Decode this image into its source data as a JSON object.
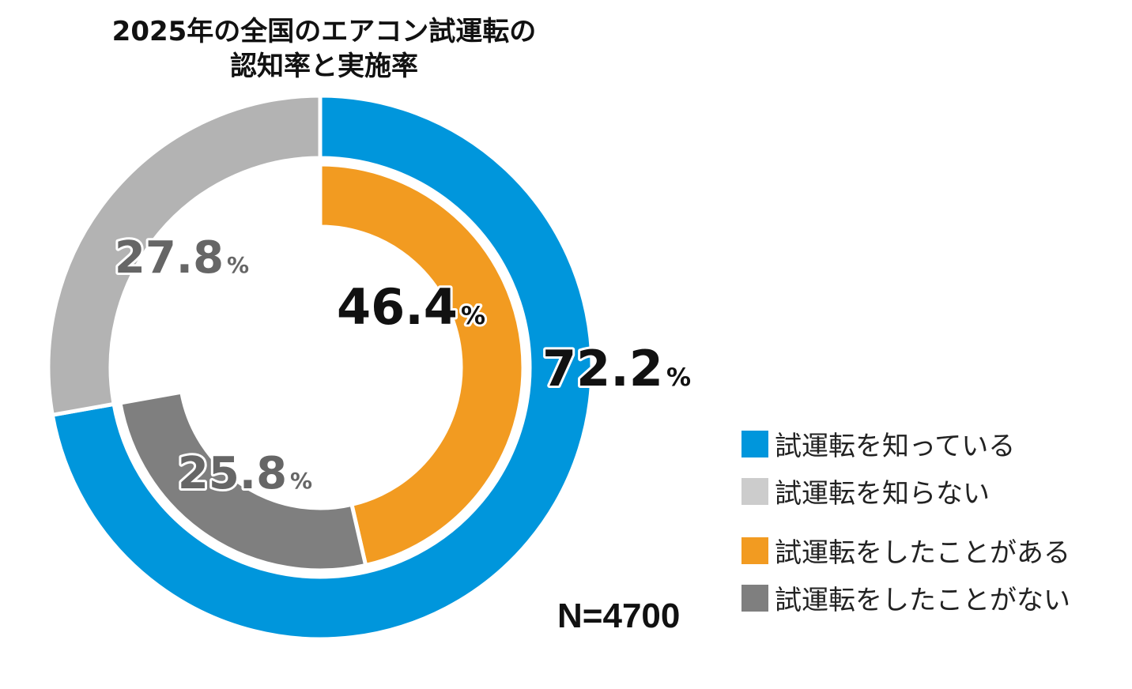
{
  "chart_data": {
    "type": "pie",
    "title_lines": [
      "2025年の全国のエアコン試運転の",
      "認知率と実施率"
    ],
    "rings": [
      {
        "name": "outer",
        "slices": [
          {
            "label": "試運転を知っている",
            "value": 72.2,
            "color": "#0096DC",
            "display": "72.2"
          },
          {
            "label": "試運転を知らない",
            "value": 27.8,
            "color": "#B3B3B3",
            "display": "27.8"
          }
        ]
      },
      {
        "name": "inner",
        "slices": [
          {
            "label": "試運転をしたことがある",
            "value": 46.4,
            "color": "#F29B21",
            "display": "46.4"
          },
          {
            "label": "試運転をしたことがない",
            "value": 25.8,
            "color": "#7F7F7F",
            "display": "25.8"
          }
        ]
      }
    ],
    "unit": "%",
    "legend": [
      {
        "label": "試運転を知っている",
        "color": "#0096DC"
      },
      {
        "label": "試運転を知らない",
        "color": "#CCCCCC"
      },
      {
        "label": "試運転をしたことがある",
        "color": "#F29B21"
      },
      {
        "label": "試運転をしたことがない",
        "color": "#7F7F7F"
      }
    ],
    "legend_position": "bottom-right",
    "sample_size": "N=4700"
  }
}
